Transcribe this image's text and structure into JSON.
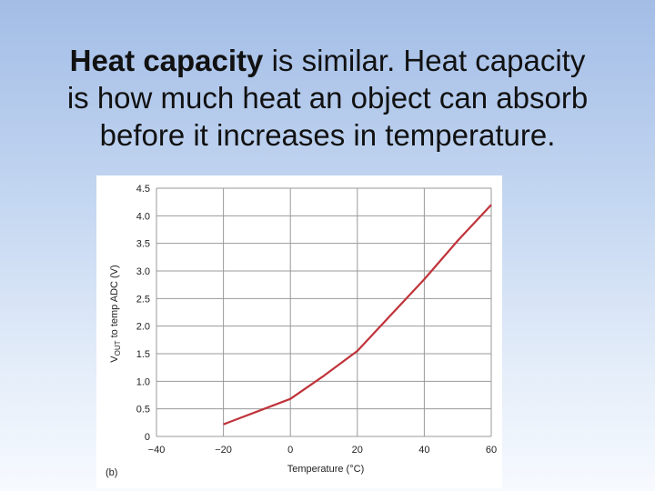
{
  "slide": {
    "title_bold": "Heat capacity",
    "title_rest_line1": " is similar.  Heat capacity",
    "title_line2": "is how much heat an object can absorb",
    "title_line3": "before it increases in temperature."
  },
  "chart_data": {
    "type": "line",
    "panel_label": "(b)",
    "xlabel": "Temperature (°C)",
    "ylabel_main": "V",
    "ylabel_sub": "OUT",
    "ylabel_rest": " to temp ADC (V)",
    "xlim": [
      -40,
      60
    ],
    "ylim": [
      0,
      4.5
    ],
    "x_ticks": [
      -40,
      -20,
      0,
      20,
      40,
      60
    ],
    "x_tick_labels": [
      "−40",
      "−20",
      "0",
      "20",
      "40",
      "60"
    ],
    "y_ticks": [
      0,
      0.5,
      1.0,
      1.5,
      2.0,
      2.5,
      3.0,
      3.5,
      4.0,
      4.5
    ],
    "y_tick_labels": [
      "0",
      "0.5",
      "1.0",
      "1.5",
      "2.0",
      "2.5",
      "3.0",
      "3.5",
      "4.0",
      "4.5"
    ],
    "grid": true,
    "line_color": "#c0333a",
    "series": [
      {
        "x": [
          -20,
          -10,
          0,
          10,
          20,
          30,
          40,
          50,
          60
        ],
        "y": [
          0.22,
          0.45,
          0.68,
          1.1,
          1.55,
          2.2,
          2.85,
          3.55,
          4.2
        ]
      }
    ]
  }
}
